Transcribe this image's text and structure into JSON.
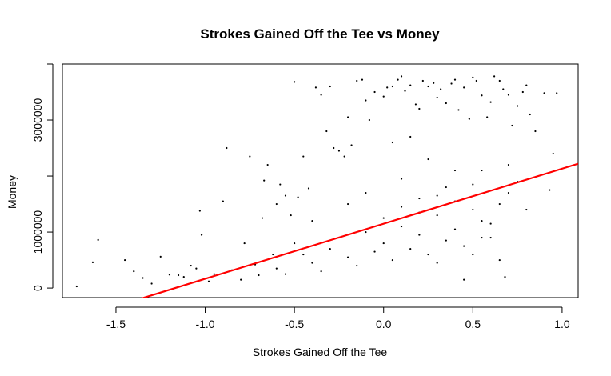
{
  "chart_data": {
    "type": "scatter",
    "title": "Strokes Gained Off the Tee vs Money",
    "xlabel": "Strokes Gained Off the Tee",
    "ylabel": "Money",
    "xlim": [
      -1.8,
      1.09
    ],
    "ylim": [
      -170000,
      4000000
    ],
    "x_ticks": [
      -1.5,
      -1.0,
      -0.5,
      0.0,
      0.5,
      1.0
    ],
    "x_tick_labels": [
      "-1.5",
      "-1.0",
      "-0.5",
      "0.0",
      "0.5",
      "1.0"
    ],
    "y_ticks": [
      0,
      1000000,
      2000000,
      3000000,
      4000000
    ],
    "y_tick_labels": [
      "0",
      "1000000",
      "",
      "3000000",
      ""
    ],
    "grid": false,
    "point_color": "#000000",
    "regression_line": {
      "color": "#ff0000",
      "x": [
        -1.8,
        1.09
      ],
      "y": [
        -620000,
        2220000
      ]
    },
    "points": [
      [
        -1.72,
        30000
      ],
      [
        -1.6,
        860000
      ],
      [
        -1.63,
        460000
      ],
      [
        -1.45,
        500000
      ],
      [
        -1.4,
        300000
      ],
      [
        -1.35,
        180000
      ],
      [
        -1.3,
        80000
      ],
      [
        -1.25,
        560000
      ],
      [
        -1.2,
        240000
      ],
      [
        -1.15,
        230000
      ],
      [
        -1.12,
        200000
      ],
      [
        -1.08,
        400000
      ],
      [
        -1.05,
        350000
      ],
      [
        -1.02,
        950000
      ],
      [
        -1.03,
        1380000
      ],
      [
        -0.98,
        120000
      ],
      [
        -0.95,
        250000
      ],
      [
        -0.9,
        1550000
      ],
      [
        -0.88,
        2500000
      ],
      [
        -0.85,
        320000
      ],
      [
        -0.8,
        150000
      ],
      [
        -0.78,
        800000
      ],
      [
        -0.75,
        2350000
      ],
      [
        -0.72,
        420000
      ],
      [
        -0.7,
        230000
      ],
      [
        -0.68,
        1250000
      ],
      [
        -0.67,
        1920000
      ],
      [
        -0.65,
        2200000
      ],
      [
        -0.62,
        600000
      ],
      [
        -0.6,
        1500000
      ],
      [
        -0.58,
        1850000
      ],
      [
        -0.55,
        1650000
      ],
      [
        -0.52,
        1300000
      ],
      [
        -0.5,
        3680000
      ],
      [
        -0.48,
        1620000
      ],
      [
        -0.45,
        2350000
      ],
      [
        -0.42,
        1780000
      ],
      [
        -0.4,
        1200000
      ],
      [
        -0.38,
        3580000
      ],
      [
        -0.35,
        3450000
      ],
      [
        -0.32,
        2800000
      ],
      [
        -0.3,
        3600000
      ],
      [
        -0.28,
        2500000
      ],
      [
        -0.25,
        2450000
      ],
      [
        -0.22,
        2350000
      ],
      [
        -0.2,
        3050000
      ],
      [
        -0.18,
        2550000
      ],
      [
        -0.15,
        3700000
      ],
      [
        -0.12,
        3720000
      ],
      [
        -0.1,
        3350000
      ],
      [
        -0.08,
        3000000
      ],
      [
        -0.05,
        3500000
      ],
      [
        0.0,
        3420000
      ],
      [
        0.02,
        3580000
      ],
      [
        0.05,
        3600000
      ],
      [
        0.08,
        3720000
      ],
      [
        0.1,
        3780000
      ],
      [
        0.12,
        3520000
      ],
      [
        0.15,
        3620000
      ],
      [
        0.18,
        3280000
      ],
      [
        0.2,
        3200000
      ],
      [
        0.22,
        3700000
      ],
      [
        0.25,
        3600000
      ],
      [
        0.28,
        3660000
      ],
      [
        0.3,
        3400000
      ],
      [
        0.32,
        3550000
      ],
      [
        0.35,
        3300000
      ],
      [
        0.38,
        3650000
      ],
      [
        0.4,
        3720000
      ],
      [
        0.42,
        3180000
      ],
      [
        0.45,
        3580000
      ],
      [
        0.48,
        3020000
      ],
      [
        0.5,
        3760000
      ],
      [
        0.52,
        3700000
      ],
      [
        0.55,
        3440000
      ],
      [
        0.58,
        3050000
      ],
      [
        0.6,
        3320000
      ],
      [
        0.62,
        3780000
      ],
      [
        0.65,
        3700000
      ],
      [
        0.67,
        3550000
      ],
      [
        0.7,
        3450000
      ],
      [
        0.72,
        2900000
      ],
      [
        0.75,
        3250000
      ],
      [
        0.78,
        3500000
      ],
      [
        0.8,
        3620000
      ],
      [
        0.82,
        3100000
      ],
      [
        0.85,
        2800000
      ],
      [
        0.9,
        3480000
      ],
      [
        0.95,
        2400000
      ],
      [
        0.97,
        3480000
      ],
      [
        0.93,
        1750000
      ],
      [
        0.8,
        1400000
      ],
      [
        0.75,
        1900000
      ],
      [
        0.7,
        2200000
      ],
      [
        0.68,
        200000
      ],
      [
        0.65,
        500000
      ],
      [
        0.6,
        900000
      ],
      [
        0.55,
        1200000
      ],
      [
        0.5,
        600000
      ],
      [
        0.45,
        150000
      ],
      [
        0.4,
        2100000
      ],
      [
        0.35,
        1800000
      ],
      [
        0.3,
        450000
      ],
      [
        0.25,
        2300000
      ],
      [
        0.2,
        1600000
      ],
      [
        0.15,
        2700000
      ],
      [
        0.1,
        1950000
      ],
      [
        0.05,
        2600000
      ],
      [
        -0.6,
        350000
      ],
      [
        -0.55,
        250000
      ],
      [
        -0.5,
        800000
      ],
      [
        -0.45,
        600000
      ],
      [
        -0.4,
        450000
      ],
      [
        -0.35,
        300000
      ],
      [
        -0.3,
        700000
      ],
      [
        -0.25,
        900000
      ],
      [
        -0.2,
        550000
      ],
      [
        -0.15,
        400000
      ],
      [
        -0.1,
        1000000
      ],
      [
        -0.05,
        650000
      ],
      [
        0.0,
        800000
      ],
      [
        0.05,
        500000
      ],
      [
        0.1,
        1100000
      ],
      [
        0.15,
        700000
      ],
      [
        0.2,
        950000
      ],
      [
        0.25,
        600000
      ],
      [
        0.3,
        1300000
      ],
      [
        0.35,
        850000
      ],
      [
        0.4,
        1050000
      ],
      [
        0.45,
        750000
      ],
      [
        0.5,
        1400000
      ],
      [
        0.55,
        900000
      ],
      [
        0.6,
        1150000
      ],
      [
        0.65,
        1500000
      ],
      [
        0.7,
        1700000
      ],
      [
        -0.2,
        1500000
      ],
      [
        -0.1,
        1700000
      ],
      [
        0.0,
        1250000
      ],
      [
        0.1,
        1450000
      ],
      [
        0.2,
        1350000
      ],
      [
        0.3,
        1650000
      ],
      [
        0.4,
        1550000
      ],
      [
        0.5,
        1850000
      ],
      [
        0.55,
        2100000
      ]
    ]
  }
}
